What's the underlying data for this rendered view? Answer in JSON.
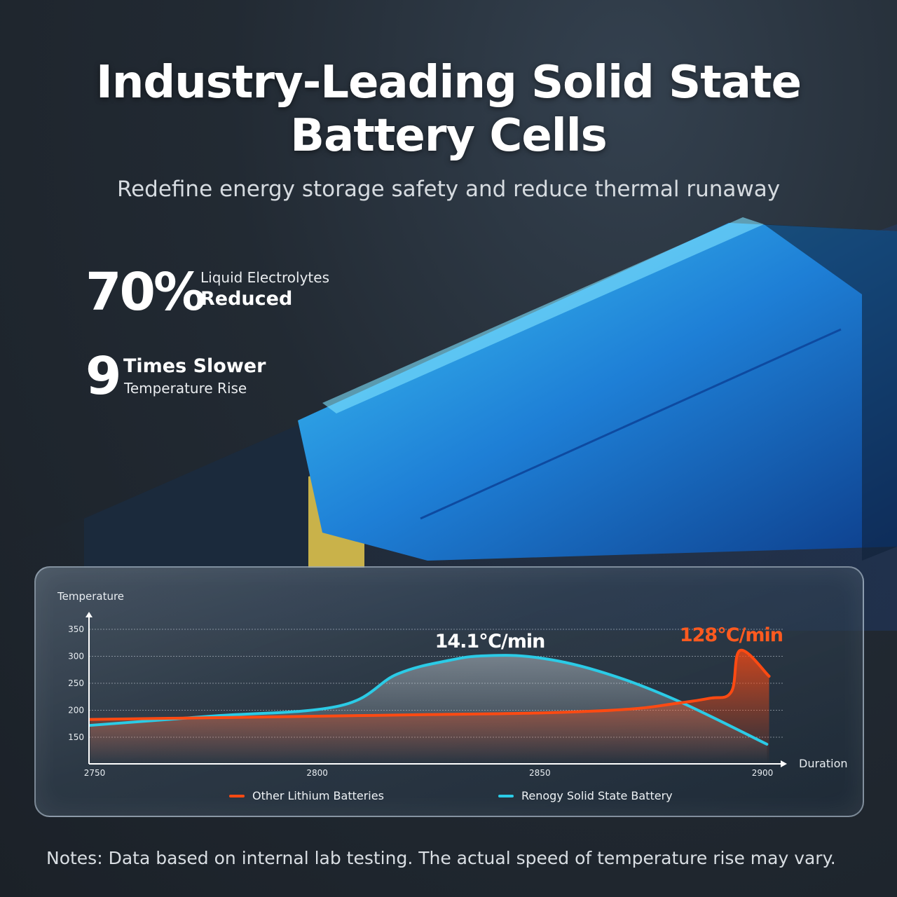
{
  "header": {
    "title_line1": "Industry-Leading Solid State",
    "title_line2": "Battery Cells",
    "subtitle": "Redefine energy storage safety and reduce thermal runaway"
  },
  "stats": [
    {
      "value": "70%",
      "line1": "Liquid Electrolytes",
      "line2": "Reduced"
    },
    {
      "value": "9",
      "line1": "Times Slower",
      "line2": "Temperature Rise"
    }
  ],
  "notes": "Notes: Data based on internal lab testing. The actual speed of temperature rise may vary.",
  "colors": {
    "other": "#ff4a12",
    "renogy": "#2bcbe6",
    "annotation_other": "#ff5a1f"
  },
  "chart_data": {
    "type": "line",
    "title": "",
    "xlabel": "Duration",
    "ylabel": "Temperature",
    "xlim": [
      2745,
      2910
    ],
    "ylim": [
      100,
      370
    ],
    "x_ticks": [
      "2750",
      "2800",
      "2850",
      "2900"
    ],
    "y_ticks": [
      "350",
      "300",
      "250",
      "200",
      "150"
    ],
    "grid": "horizontal dotted",
    "legend": "bottom",
    "series": [
      {
        "name": "Other Lithium Batteries",
        "color": "#ff4a12",
        "x": [
          2749,
          2775,
          2800,
          2825,
          2850,
          2870,
          2880,
          2888,
          2893,
          2895,
          2901.5
        ],
        "y": [
          183,
          186,
          189,
          192,
          195,
          202,
          212,
          222,
          234,
          311,
          263
        ],
        "annotation": "128°C/min"
      },
      {
        "name": "Renogy Solid State Battery",
        "color": "#2bcbe6",
        "x": [
          2749,
          2776,
          2805,
          2818,
          2830,
          2838,
          2849,
          2863,
          2880,
          2901
        ],
        "y": [
          172,
          189,
          208,
          267,
          293,
          301,
          298,
          273,
          221,
          137
        ],
        "annotation": "14.1℃/min"
      }
    ]
  }
}
